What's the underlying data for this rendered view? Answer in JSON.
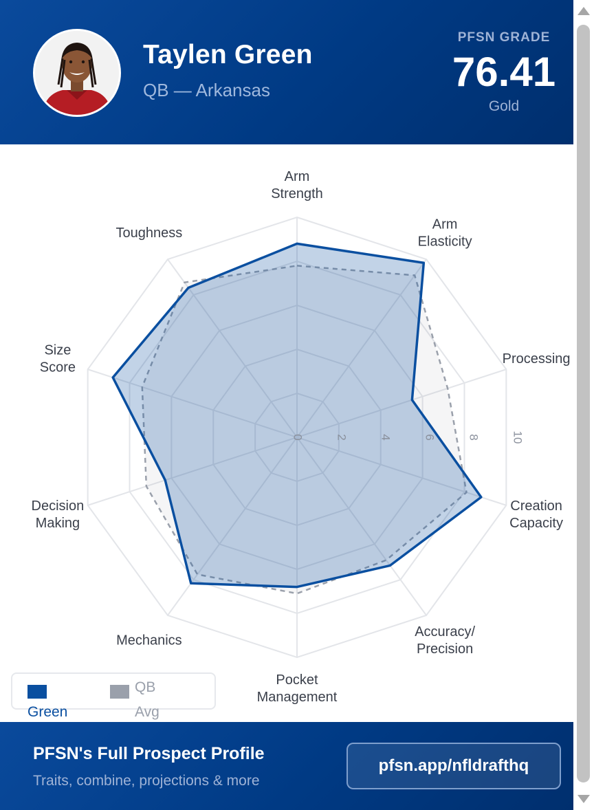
{
  "header": {
    "name": "Taylen Green",
    "position_school": "QB — Arkansas",
    "grade_label": "PFSN GRADE",
    "grade_value": "76.41",
    "grade_tier": "Gold"
  },
  "chart_data": {
    "type": "radar",
    "axes": [
      [
        "Arm",
        "Strength"
      ],
      [
        "Arm",
        "Elasticity"
      ],
      [
        "Processing"
      ],
      [
        "Creation",
        "Capacity"
      ],
      [
        "Accuracy/",
        "Precision"
      ],
      [
        "Pocket",
        "Management"
      ],
      [
        "Mechanics"
      ],
      [
        "Decision",
        "Making"
      ],
      [
        "Size",
        "Score"
      ],
      [
        "Toughness"
      ]
    ],
    "scale": {
      "min": 0,
      "max": 10,
      "ticks": [
        "0",
        "2",
        "4",
        "6",
        "8",
        "10"
      ]
    },
    "grid": true,
    "legend_position": "bottom-left",
    "series": [
      {
        "name": "Green",
        "values": [
          8.8,
          9.8,
          5.5,
          8.8,
          7.2,
          6.8,
          8.2,
          6.3,
          8.8,
          8.4
        ],
        "color": "#0a4fa0",
        "fill": "rgba(10,79,160,0.25)",
        "style": "solid"
      },
      {
        "name": "QB Avg",
        "values": [
          7.8,
          9.1,
          7.2,
          8.1,
          6.9,
          7.1,
          7.7,
          7.2,
          7.4,
          8.7
        ],
        "color": "#9aa0ab",
        "fill": "rgba(154,160,171,0.10)",
        "style": "dashed"
      }
    ]
  },
  "legend": {
    "items": [
      {
        "label": "Green",
        "color": "#0a4fa0"
      },
      {
        "label": "QB Avg",
        "color": "#9aa0ab"
      }
    ]
  },
  "footer": {
    "title": "PFSN's Full Prospect Profile",
    "subtitle": "Traits, combine, projections & more",
    "button_label": "pfsn.app/nfldrafthq"
  }
}
